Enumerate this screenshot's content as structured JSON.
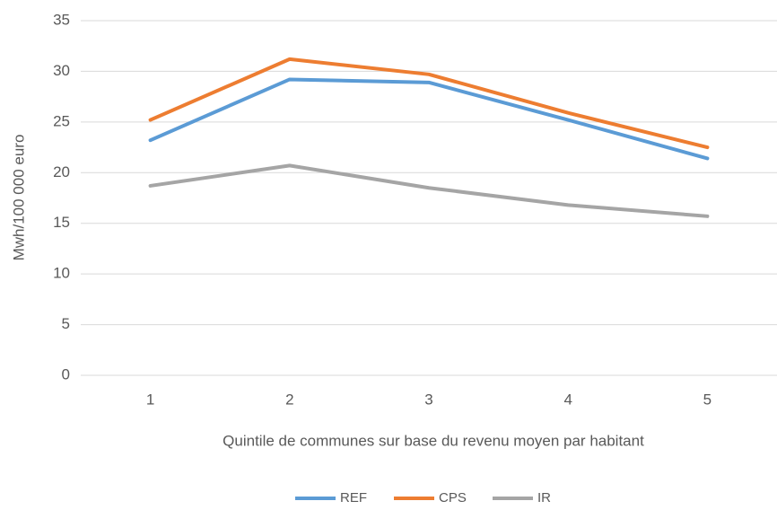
{
  "chart_data": {
    "type": "line",
    "x_label": "Quintile de communes sur base du revenu moyen par habitant",
    "y_label": "Mwh/100 000 euro",
    "categories": [
      "1",
      "2",
      "3",
      "4",
      "5"
    ],
    "series": [
      {
        "name": "REF",
        "color": "#5b9bd5",
        "values": [
          23.2,
          29.2,
          28.9,
          25.2,
          21.4
        ]
      },
      {
        "name": "CPS",
        "color": "#ed7d31",
        "values": [
          25.2,
          31.2,
          29.7,
          25.9,
          22.5
        ]
      },
      {
        "name": "IR",
        "color": "#a5a5a5",
        "values": [
          18.7,
          20.7,
          18.5,
          16.8,
          15.7
        ]
      }
    ],
    "ylim": [
      0,
      35
    ],
    "yticks": [
      0,
      5,
      10,
      15,
      20,
      25,
      30,
      35
    ],
    "grid": true,
    "legend": "bottom"
  }
}
